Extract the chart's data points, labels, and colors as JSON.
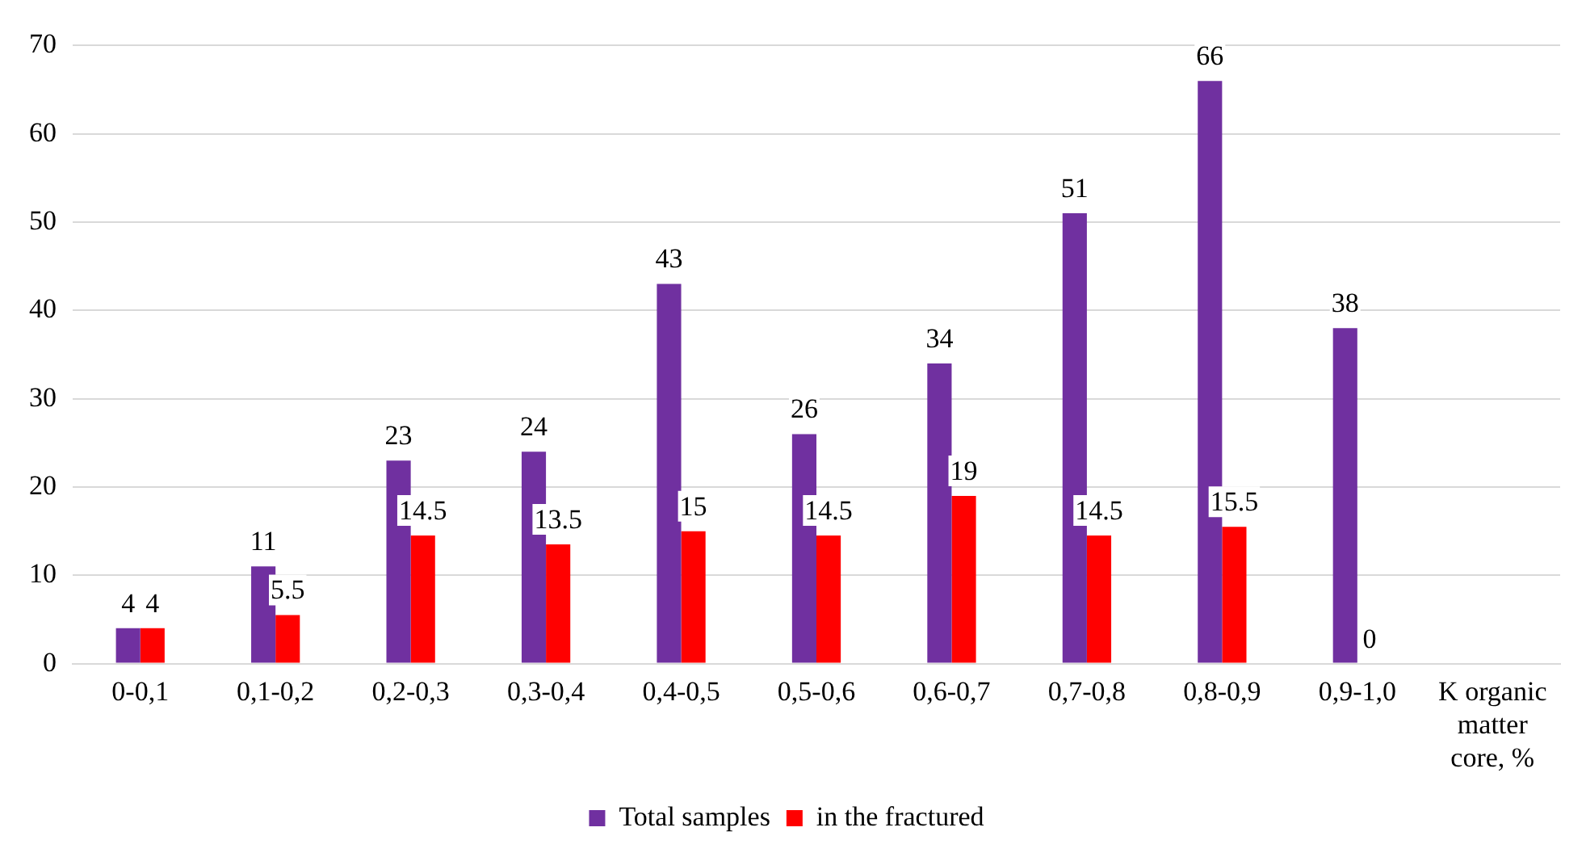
{
  "chart_data": {
    "type": "bar",
    "categories": [
      "0-0,1",
      "0,1-0,2",
      "0,2-0,3",
      "0,3-0,4",
      "0,4-0,5",
      "0,5-0,6",
      "0,6-0,7",
      "0,7-0,8",
      "0,8-0,9",
      "0,9-1,0",
      "K organic matter core, %"
    ],
    "series": [
      {
        "name": "Total samples",
        "color": "#7030a0",
        "values": [
          4,
          11,
          23,
          24,
          43,
          26,
          34,
          51,
          66,
          38,
          null
        ]
      },
      {
        "name": "in the fractured",
        "color": "#ff0000",
        "values": [
          4,
          5.5,
          14.5,
          13.5,
          15,
          14.5,
          19,
          14.5,
          15.5,
          0,
          null
        ]
      }
    ],
    "ylim": [
      0,
      70
    ],
    "yticks": [
      0,
      10,
      20,
      30,
      40,
      50,
      60,
      70
    ],
    "grid": "y",
    "legend": "bottom",
    "data_labels": true
  }
}
